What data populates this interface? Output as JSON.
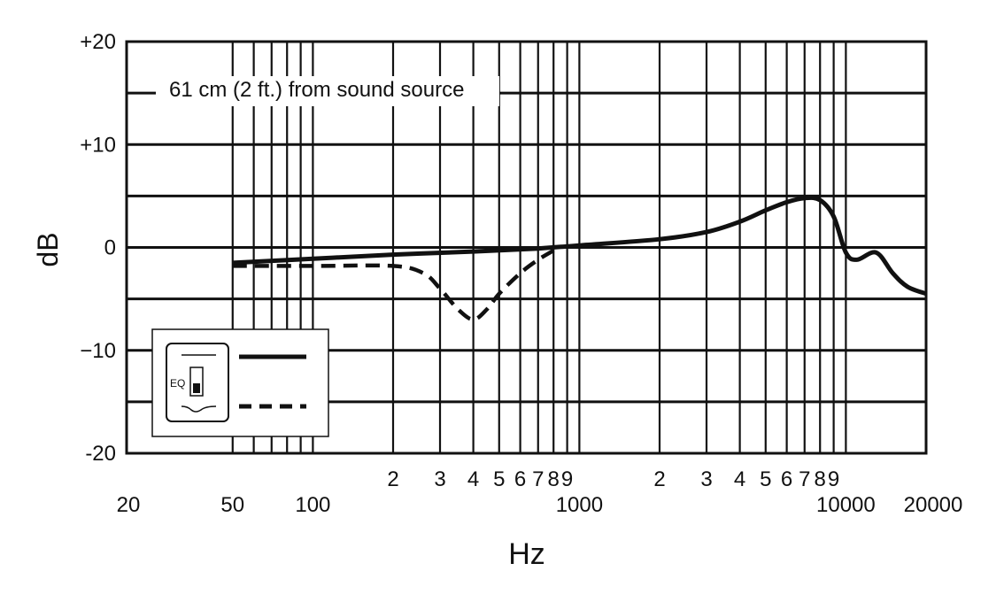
{
  "chart_data": {
    "type": "line",
    "x_scale": "log",
    "y_scale": "linear",
    "xlim": [
      20,
      20000
    ],
    "ylim": [
      -20,
      20
    ],
    "grid": true,
    "xlabel": "Hz",
    "ylabel": "dB",
    "annotation": "61 cm (2 ft.) from sound source",
    "y_ticks": [
      {
        "value": 20,
        "label": "+20"
      },
      {
        "value": 10,
        "label": "+10"
      },
      {
        "value": 0,
        "label": "0"
      },
      {
        "value": -10,
        "label": "−10"
      },
      {
        "value": -20,
        "label": "-20"
      }
    ],
    "x_major_ticks": [
      {
        "value": 20,
        "label": "20"
      },
      {
        "value": 50,
        "label": "50"
      },
      {
        "value": 100,
        "label": "100"
      },
      {
        "value": 1000,
        "label": "1000"
      },
      {
        "value": 10000,
        "label": "10000"
      },
      {
        "value": 20000,
        "label": "20000"
      }
    ],
    "x_minor_ticks": [
      {
        "value": 200,
        "label": "2"
      },
      {
        "value": 300,
        "label": "3"
      },
      {
        "value": 400,
        "label": "4"
      },
      {
        "value": 500,
        "label": "5"
      },
      {
        "value": 600,
        "label": "6"
      },
      {
        "value": 700,
        "label": "7"
      },
      {
        "value": 800,
        "label": "8"
      },
      {
        "value": 900,
        "label": "9"
      },
      {
        "value": 2000,
        "label": "2"
      },
      {
        "value": 3000,
        "label": "3"
      },
      {
        "value": 4000,
        "label": "4"
      },
      {
        "value": 5000,
        "label": "5"
      },
      {
        "value": 6000,
        "label": "6"
      },
      {
        "value": 7000,
        "label": "7"
      },
      {
        "value": 8000,
        "label": "8"
      },
      {
        "value": 9000,
        "label": "9"
      }
    ],
    "legend": {
      "switch_label": "EQ",
      "placement": "bottom-left"
    },
    "series": [
      {
        "style": "solid",
        "x": [
          50,
          100,
          200,
          400,
          700,
          1000,
          2000,
          3000,
          4000,
          5000,
          6000,
          7000,
          8000,
          9000,
          10000,
          11000,
          13000,
          15000,
          17000,
          20000
        ],
        "y": [
          -1.5,
          -1.1,
          -0.7,
          -0.4,
          -0.1,
          0.2,
          0.8,
          1.5,
          2.5,
          3.6,
          4.4,
          4.8,
          4.6,
          3.0,
          -0.5,
          -1.2,
          -0.5,
          -2.5,
          -3.8,
          -4.5
        ]
      },
      {
        "style": "dashed",
        "x": [
          50,
          100,
          200,
          260,
          300,
          350,
          400,
          450,
          500,
          600,
          700,
          800
        ],
        "y": [
          -1.8,
          -1.8,
          -1.8,
          -2.5,
          -4.0,
          -6.0,
          -7.0,
          -6.0,
          -4.5,
          -2.5,
          -1.2,
          -0.3
        ]
      }
    ]
  }
}
